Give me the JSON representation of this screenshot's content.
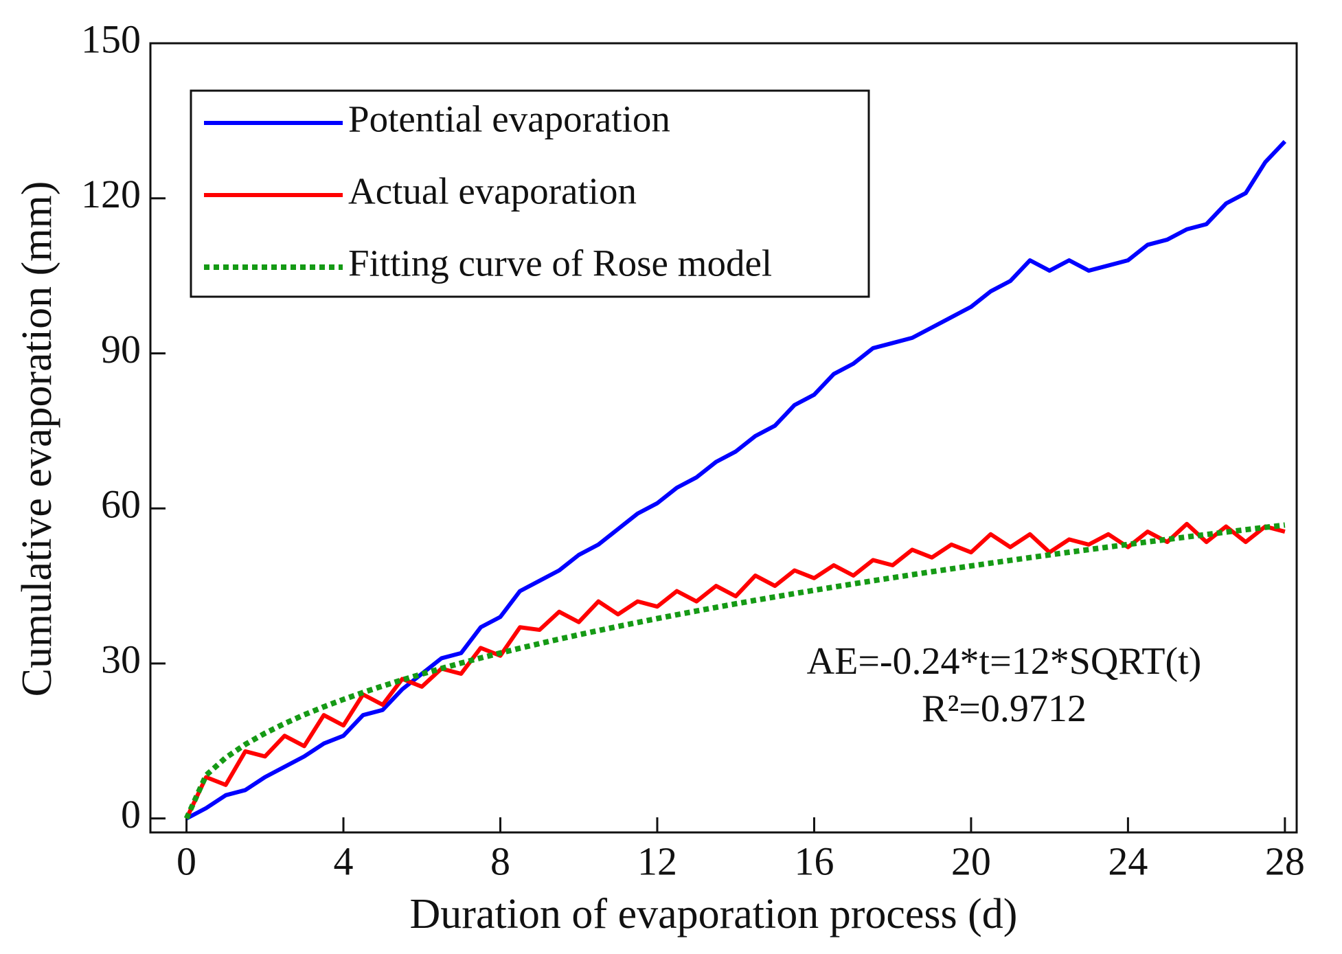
{
  "chart_data": {
    "type": "line",
    "x_label": "Duration of evaporation process (d)",
    "y_label": "Cumulative evaporation (mm)",
    "annotations": [
      "AE=-0.24*t=12*SQRT(t)",
      "R²=0.9712"
    ],
    "x": [
      0,
      0.5,
      1,
      1.5,
      2,
      2.5,
      3,
      3.5,
      4,
      4.5,
      5,
      5.5,
      6,
      6.5,
      7,
      7.5,
      8,
      8.5,
      9,
      9.5,
      10,
      10.5,
      11,
      11.5,
      12,
      12.5,
      13,
      13.5,
      14,
      14.5,
      15,
      15.5,
      16,
      16.5,
      17,
      17.5,
      18,
      18.5,
      19,
      19.5,
      20,
      20.5,
      21,
      21.5,
      22,
      22.5,
      23,
      23.5,
      24,
      24.5,
      25,
      25.5,
      26,
      26.5,
      27,
      27.5,
      28
    ],
    "series": [
      {
        "name": "Potential evaporation",
        "color": "#0000ff",
        "style": "solid",
        "values": [
          0,
          2,
          4.5,
          5.5,
          8,
          10,
          12,
          14.5,
          16,
          20,
          21,
          25,
          28,
          31,
          32,
          37,
          39,
          44,
          46,
          48,
          51,
          53,
          56,
          59,
          61,
          64,
          66,
          69,
          71,
          74,
          76,
          80,
          82,
          86,
          88,
          91,
          92,
          93,
          95,
          97,
          99,
          102,
          104,
          108,
          106,
          108,
          106,
          107,
          108,
          111,
          112,
          114,
          115,
          119,
          121,
          127,
          131
        ]
      },
      {
        "name": "Actual evaporation",
        "color": "#ff0000",
        "style": "solid",
        "values": [
          0,
          8,
          6.5,
          13,
          12,
          16,
          14,
          20,
          18,
          24,
          22,
          27,
          25.5,
          29,
          28,
          33,
          31.5,
          37,
          36.5,
          40,
          38,
          42,
          39.5,
          42,
          41,
          44,
          42,
          45,
          43,
          47,
          45,
          48,
          46.5,
          49,
          47,
          50,
          49,
          52,
          50.5,
          53,
          51.5,
          55,
          52.5,
          55,
          51.5,
          54,
          53,
          55,
          52.5,
          55.5,
          53.5,
          57,
          53.5,
          56.5,
          53.5,
          56.5,
          55.5
        ]
      },
      {
        "name": "Fitting curve of Rose model",
        "color": "#159a15",
        "style": "dotted",
        "values": [
          0,
          8.37,
          11.76,
          14.34,
          16.49,
          18.37,
          20.06,
          21.61,
          23.04,
          24.38,
          25.63,
          26.82,
          27.95,
          29.03,
          30.07,
          31.06,
          32.02,
          32.95,
          33.84,
          34.71,
          35.55,
          36.36,
          37.16,
          37.93,
          38.69,
          39.43,
          40.15,
          40.85,
          41.54,
          42.22,
          42.88,
          43.52,
          44.16,
          44.78,
          45.4,
          46,
          46.59,
          47.17,
          47.75,
          48.31,
          48.87,
          49.41,
          49.95,
          50.48,
          51.01,
          51.52,
          52.03,
          52.53,
          53.03,
          53.52,
          54,
          54.48,
          54.95,
          55.41,
          55.88,
          56.33,
          56.78
        ]
      }
    ],
    "xlim": [
      -0.92,
      28.3
    ],
    "ylim": [
      -2.7,
      150
    ],
    "xticks": [
      0,
      4,
      8,
      12,
      16,
      20,
      24,
      28
    ],
    "yticks": [
      0,
      30,
      60,
      90,
      120,
      150
    ],
    "legend": "upper left",
    "grid": false
  }
}
